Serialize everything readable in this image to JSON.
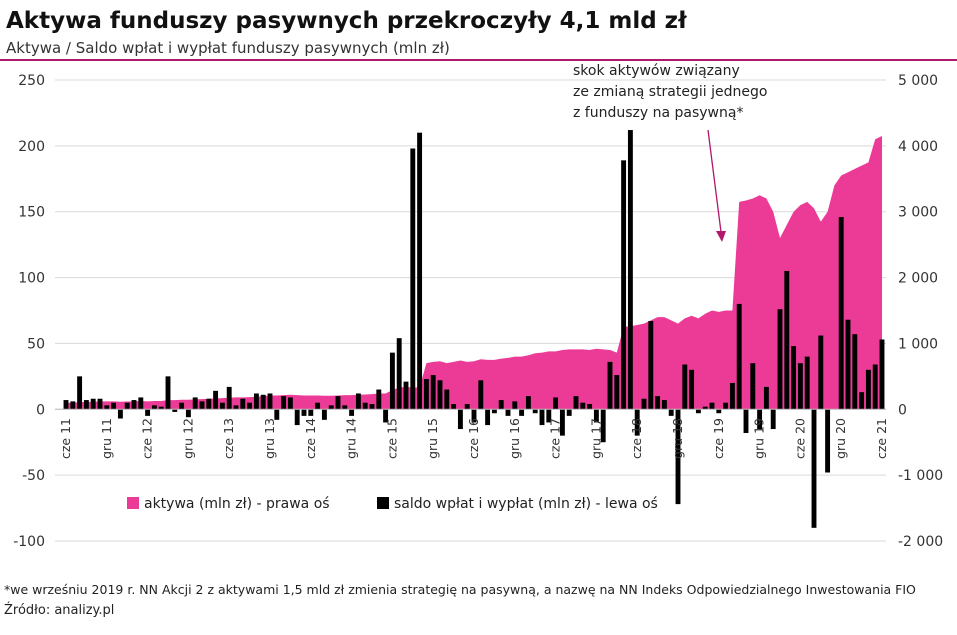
{
  "chart_data": {
    "type": "combo",
    "title": "Aktywa funduszy pasywnych przekroczyły 4,1 mld zł",
    "subtitle": "Aktywa / Saldo wpłat i wypłat funduszy pasywnych (mln zł)",
    "annotation": [
      "skok aktywów związany",
      "ze zmianą strategii jednego",
      "z funduszy na pasywną*"
    ],
    "footnote": "*we wrześniu 2019 r. NN Akcji 2 z aktywami 1,5 mld zł zmienia strategię na pasywną, a nazwę na NN Indeks Odpowiedzialnego Inwestowania FIO",
    "source": "Źródło: analizy.pl",
    "categories": [
      "cze 11",
      null,
      null,
      null,
      null,
      null,
      "gru 11",
      null,
      null,
      null,
      null,
      null,
      "cze 12",
      null,
      null,
      null,
      null,
      null,
      "gru 12",
      null,
      null,
      null,
      null,
      null,
      "cze 13",
      null,
      null,
      null,
      null,
      null,
      "gru 13",
      null,
      null,
      null,
      null,
      null,
      "cze 14",
      null,
      null,
      null,
      null,
      null,
      "gru 14",
      null,
      null,
      null,
      null,
      null,
      "cze 15",
      null,
      null,
      null,
      null,
      null,
      "gru 15",
      null,
      null,
      null,
      null,
      null,
      "cze 16",
      null,
      null,
      null,
      null,
      null,
      "gru 16",
      null,
      null,
      null,
      null,
      null,
      "cze 17",
      null,
      null,
      null,
      null,
      null,
      "gru 17",
      null,
      null,
      null,
      null,
      null,
      "cze 18",
      null,
      null,
      null,
      null,
      null,
      "gru 18",
      null,
      null,
      null,
      null,
      null,
      "cze 19",
      null,
      null,
      null,
      null,
      null,
      "gru 19",
      null,
      null,
      null,
      null,
      null,
      "cze 20",
      null,
      null,
      null,
      null,
      null,
      "gru 20",
      null,
      null,
      null,
      null,
      null,
      "cze 21"
    ],
    "series": [
      {
        "name": "aktywa (mln zł) - prawa oś",
        "type": "area",
        "axis": "y2",
        "color": "#ec3b97",
        "values": [
          100,
          100,
          110,
          110,
          115,
          120,
          120,
          120,
          115,
          118,
          120,
          125,
          120,
          125,
          125,
          140,
          140,
          145,
          145,
          150,
          155,
          160,
          165,
          170,
          175,
          180,
          180,
          185,
          190,
          200,
          210,
          210,
          215,
          220,
          215,
          210,
          210,
          210,
          205,
          205,
          210,
          215,
          215,
          220,
          225,
          230,
          240,
          240,
          290,
          330,
          340,
          330,
          330,
          700,
          720,
          730,
          700,
          720,
          740,
          720,
          730,
          760,
          750,
          750,
          770,
          780,
          800,
          800,
          820,
          850,
          860,
          880,
          880,
          900,
          910,
          910,
          910,
          900,
          920,
          910,
          900,
          860,
          1250,
          1260,
          1280,
          1300,
          1350,
          1400,
          1400,
          1350,
          1300,
          1380,
          1420,
          1380,
          1450,
          1500,
          1480,
          1500,
          1500,
          3150,
          3170,
          3200,
          3250,
          3200,
          3000,
          2600,
          2800,
          3000,
          3100,
          3150,
          3050,
          2850,
          3000,
          3400,
          3550,
          3600,
          3650,
          3700,
          3750,
          4100,
          4150
        ]
      },
      {
        "name": "saldo wpłat i wypłat (mln zł) - lewa oś",
        "type": "bar",
        "axis": "y",
        "color": "#000000",
        "values": [
          7,
          6,
          25,
          7,
          8,
          8,
          3,
          5,
          -7,
          5,
          7,
          9,
          -5,
          3,
          2,
          25,
          -2,
          5,
          -6,
          9,
          6,
          8,
          14,
          5,
          17,
          3,
          8,
          5,
          12,
          11,
          12,
          -8,
          10,
          9,
          -12,
          -5,
          -5,
          5,
          -8,
          3,
          10,
          3,
          -5,
          12,
          5,
          4,
          15,
          -10,
          43,
          54,
          21,
          198,
          210,
          23,
          26,
          22,
          15,
          4,
          -15,
          4,
          -10,
          22,
          -12,
          -3,
          7,
          -5,
          6,
          -5,
          10,
          -3,
          -12,
          -10,
          9,
          -20,
          -5,
          10,
          5,
          4,
          -10,
          -25,
          36,
          26,
          189,
          212,
          -20,
          8,
          67,
          10,
          7,
          -5,
          -72,
          34,
          30,
          -3,
          2,
          5,
          -3,
          5,
          20,
          80,
          -18,
          35,
          -15,
          17,
          -15,
          76,
          105,
          48,
          35,
          40,
          -90,
          56,
          -48,
          0,
          146,
          68,
          57,
          13,
          30,
          34,
          53
        ]
      }
    ],
    "ylim": [
      -100,
      250
    ],
    "yticks": [
      -100,
      -50,
      0,
      50,
      100,
      150,
      200,
      250
    ],
    "y2lim": [
      -2000,
      5000
    ],
    "y2ticks": [
      {
        "value": -2000,
        "label": "-2 000"
      },
      {
        "value": -1000,
        "label": "-1 000"
      },
      0,
      {
        "value": 1000,
        "label": "1 000"
      },
      {
        "value": 2000,
        "label": "2 000"
      },
      {
        "value": 3000,
        "label": "3 000"
      },
      {
        "value": 4000,
        "label": "4 000"
      },
      {
        "value": 5000,
        "label": "5 000"
      }
    ],
    "grid": true
  }
}
